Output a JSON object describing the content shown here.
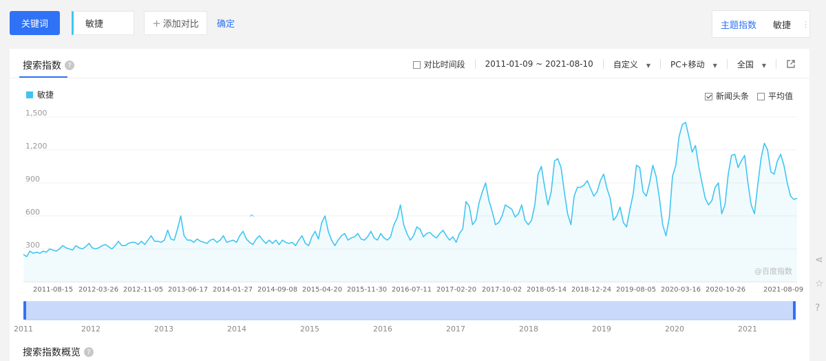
{
  "toolbar": {
    "keyword_btn": "关键词",
    "keyword_value": "敏捷",
    "add_compare": "添加对比",
    "confirm": "确定",
    "topic_label": "主题指数",
    "topic_keyword": "敏捷"
  },
  "panel": {
    "tab": "搜索指数",
    "compare_period": "对比时间段",
    "date_range": "2011-01-09 ~ 2021-08-10",
    "custom": "自定义",
    "device": "PC+移动",
    "region": "全国",
    "legend": "敏捷",
    "opt_news": "新闻头条",
    "opt_avg": "平均值",
    "watermark": "@百度指数",
    "overview": "搜索指数概览"
  },
  "colors": {
    "accent": "#3072f6",
    "series": "#3ec5f2"
  },
  "chart_data": {
    "type": "area",
    "title": "",
    "ylabel": "",
    "ylim": [
      0,
      1500
    ],
    "y_ticks": [
      "300",
      "600",
      "900",
      "1,200",
      "1,500"
    ],
    "x_ticks": [
      "2011-08-15",
      "2012-03-26",
      "2012-11-05",
      "2013-06-17",
      "2014-01-27",
      "2014-09-08",
      "2015-04-20",
      "2015-11-30",
      "2016-07-11",
      "2017-02-20",
      "2017-10-02",
      "2018-05-14",
      "2018-12-24",
      "2019-08-05",
      "2020-03-16",
      "2020-10-26",
      "2021-08-09"
    ],
    "series": [
      {
        "name": "敏捷",
        "x_start": "2011-01-09",
        "x_end": "2021-08-10",
        "values": [
          250,
          230,
          280,
          260,
          270,
          260,
          280,
          270,
          300,
          290,
          280,
          300,
          330,
          310,
          300,
          290,
          330,
          310,
          300,
          320,
          350,
          310,
          300,
          310,
          330,
          340,
          320,
          300,
          330,
          370,
          330,
          330,
          350,
          360,
          360,
          340,
          370,
          340,
          380,
          420,
          370,
          370,
          360,
          380,
          470,
          390,
          380,
          480,
          600,
          420,
          380,
          380,
          360,
          390,
          370,
          360,
          350,
          380,
          390,
          360,
          380,
          420,
          360,
          370,
          380,
          360,
          420,
          460,
          390,
          360,
          340,
          390,
          420,
          380,
          350,
          380,
          350,
          380,
          340,
          380,
          360,
          350,
          360,
          330,
          380,
          420,
          350,
          330,
          410,
          460,
          390,
          540,
          600,
          460,
          380,
          330,
          380,
          420,
          440,
          380,
          400,
          410,
          440,
          390,
          380,
          410,
          460,
          400,
          380,
          440,
          400,
          380,
          410,
          520,
          580,
          700,
          520,
          440,
          380,
          420,
          500,
          480,
          410,
          440,
          450,
          420,
          400,
          440,
          470,
          420,
          380,
          410,
          360,
          440,
          480,
          730,
          690,
          520,
          560,
          720,
          820,
          900,
          740,
          640,
          520,
          540,
          600,
          700,
          680,
          660,
          590,
          620,
          700,
          560,
          520,
          560,
          700,
          980,
          1050,
          860,
          700,
          820,
          1100,
          1120,
          1040,
          820,
          620,
          520,
          780,
          860,
          860,
          880,
          920,
          850,
          780,
          820,
          920,
          980,
          850,
          760,
          560,
          600,
          680,
          540,
          500,
          660,
          800,
          1060,
          1040,
          820,
          780,
          900,
          1060,
          960,
          760,
          520,
          420,
          580,
          960,
          1060,
          1320,
          1430,
          1450,
          1320,
          1180,
          1240,
          1050,
          900,
          760,
          700,
          740,
          860,
          900,
          620,
          700,
          980,
          1150,
          1160,
          1040,
          1100,
          1150,
          900,
          700,
          620,
          880,
          1120,
          1260,
          1200,
          1000,
          980,
          1100,
          1160,
          1060,
          900,
          780,
          750,
          760
        ]
      }
    ],
    "timeline_years": [
      "2011",
      "2012",
      "2013",
      "2014",
      "2015",
      "2016",
      "2017",
      "2018",
      "2019",
      "2020",
      "2021"
    ]
  }
}
